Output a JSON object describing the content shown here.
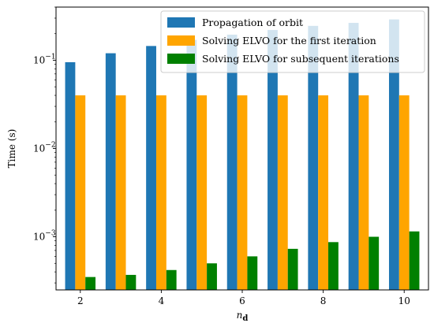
{
  "chart_data": {
    "type": "bar",
    "x": [
      2,
      3,
      4,
      5,
      6,
      7,
      8,
      9,
      10
    ],
    "xlabel_base": "n",
    "xlabel_sub": "d",
    "ylabel": "Time (s)",
    "yscale": "log",
    "ylim": [
      0.00025,
      0.4
    ],
    "xticks": [
      2,
      4,
      6,
      8,
      10
    ],
    "yticks": [
      {
        "value": 0.001,
        "base": "10",
        "exp": "−3"
      },
      {
        "value": 0.01,
        "base": "10",
        "exp": "−2"
      },
      {
        "value": 0.1,
        "base": "10",
        "exp": "−1"
      }
    ],
    "legend_position": "top-right",
    "grid": false,
    "series": [
      {
        "name": "Propagation of orbit",
        "color": "#1f77b4",
        "values": [
          0.095,
          0.12,
          0.145,
          0.17,
          0.195,
          0.22,
          0.245,
          0.265,
          0.29
        ]
      },
      {
        "name": "Solving ELVO for the first iteration",
        "color": "#ffa500",
        "values": [
          0.04,
          0.04,
          0.04,
          0.04,
          0.04,
          0.04,
          0.04,
          0.04,
          0.04
        ]
      },
      {
        "name": "Solving ELVO for subsequent iterations",
        "color": "#008000",
        "values": [
          0.00035,
          0.00037,
          0.00042,
          0.0005,
          0.0006,
          0.00073,
          0.00087,
          0.001,
          0.00115
        ]
      }
    ]
  }
}
